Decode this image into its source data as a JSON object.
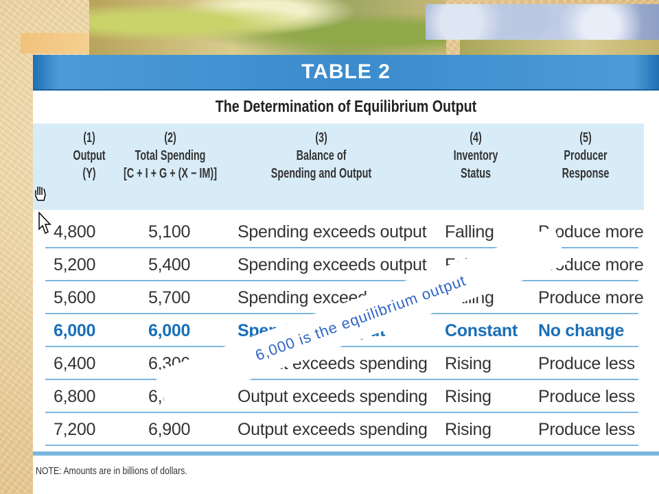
{
  "table": {
    "title": "TABLE 2",
    "subtitle": "The Determination of Equilibrium Output",
    "columns": [
      {
        "num": "(1)",
        "line1": "Output",
        "line2": "(Y)"
      },
      {
        "num": "(2)",
        "line1": "Total Spending",
        "line2": "[C + I + G + (X − IM)]"
      },
      {
        "num": "(3)",
        "line1": "Balance of",
        "line2": "Spending and Output"
      },
      {
        "num": "(4)",
        "line1": "Inventory",
        "line2": "Status"
      },
      {
        "num": "(5)",
        "line1": "Producer",
        "line2": "Response"
      }
    ],
    "rows": [
      {
        "output": "4,800",
        "spending": "5,100",
        "balance": "Spending exceeds output",
        "inventory": "Falling",
        "response": "Produce more"
      },
      {
        "output": "5,200",
        "spending": "5,400",
        "balance": "Spending exceeds output",
        "inventory": "Falling",
        "response": "Produce more"
      },
      {
        "output": "5,600",
        "spending": "5,700",
        "balance": "Spending exceeds output",
        "inventory": "Falling",
        "response": "Produce more"
      },
      {
        "output": "6,000",
        "spending": "6,000",
        "balance": "Spending = output",
        "inventory": "Constant",
        "response": "No change"
      },
      {
        "output": "6,400",
        "spending": "6,300",
        "balance": "Output exceeds spending",
        "inventory": "Rising",
        "response": "Produce less"
      },
      {
        "output": "6,800",
        "spending": "6,600",
        "balance": "Output exceeds spending",
        "inventory": "Rising",
        "response": "Produce less"
      },
      {
        "output": "7,200",
        "spending": "6,900",
        "balance": "Output exceeds spending",
        "inventory": "Rising",
        "response": "Produce less"
      }
    ],
    "highlight_row": 3,
    "highlight_color": "#1a6fb8",
    "note": "NOTE: Amounts are in billions of dollars."
  },
  "callout": {
    "text": "6,000 is the equilibrium output"
  },
  "icons": {
    "cursor": "hand-pointer-icon"
  }
}
